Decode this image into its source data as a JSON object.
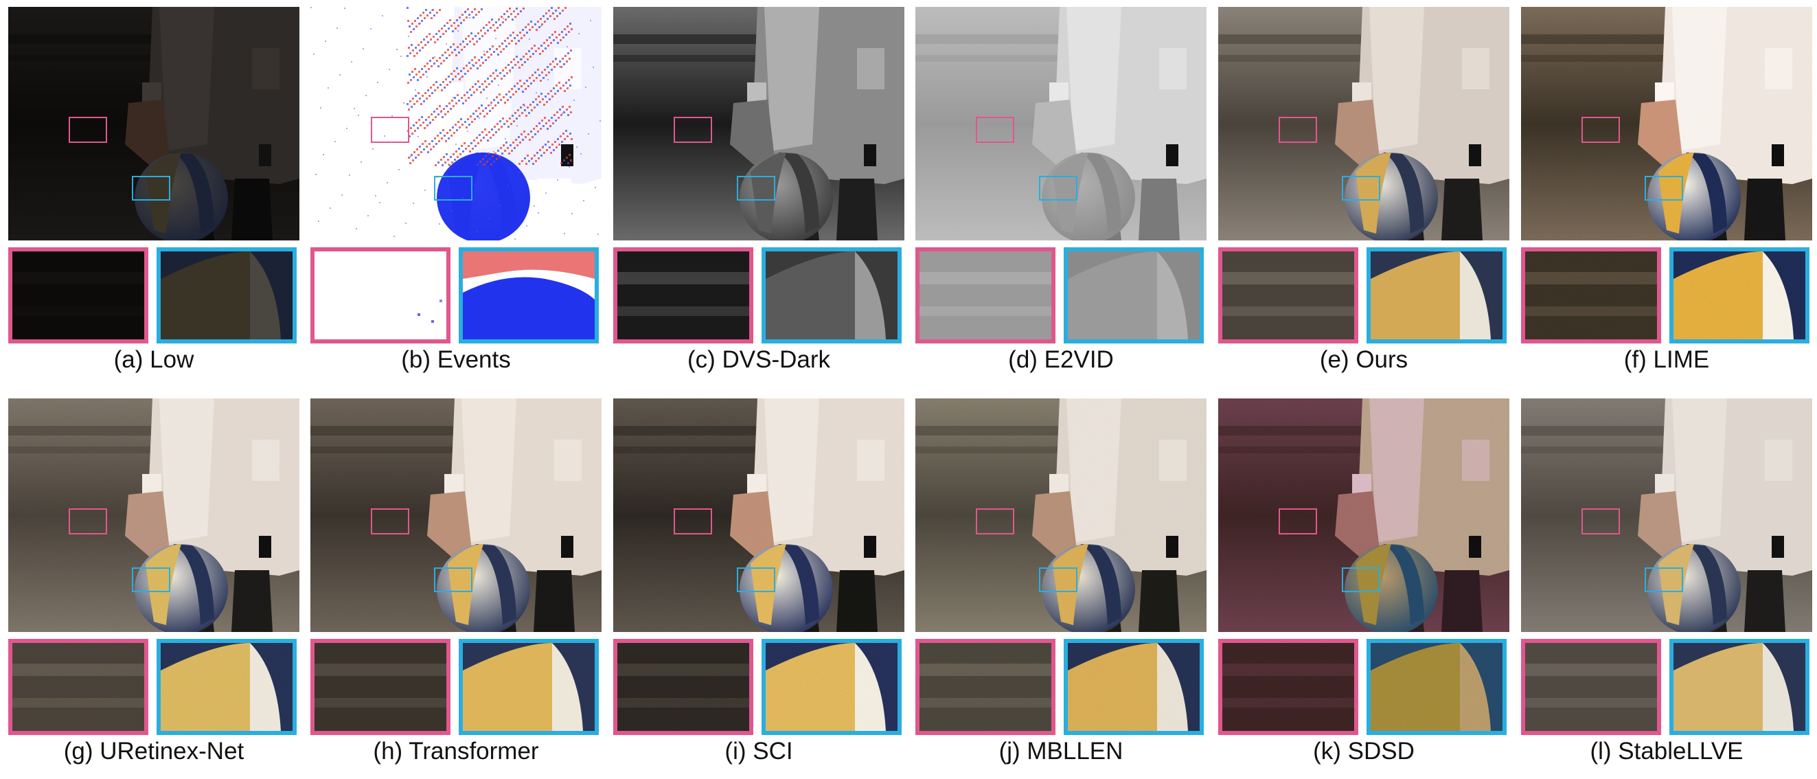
{
  "colors": {
    "pink": "#e0578e",
    "blue": "#29aee0"
  },
  "panels": [
    {
      "caption": "(a) Low",
      "variant": "low"
    },
    {
      "caption": "(b) Events",
      "variant": "events"
    },
    {
      "caption": "(c) DVS-Dark",
      "variant": "dvsdark"
    },
    {
      "caption": "(d) E2VID",
      "variant": "e2vid"
    },
    {
      "caption": "(e) Ours",
      "variant": "ours"
    },
    {
      "caption": "(f) LIME",
      "variant": "lime"
    },
    {
      "caption": "(g) URetinex-Net",
      "variant": "uretinex"
    },
    {
      "caption": "(h) Transformer",
      "variant": "transformer"
    },
    {
      "caption": "(i) SCI",
      "variant": "sci"
    },
    {
      "caption": "(j) MBLLEN",
      "variant": "mbllen"
    },
    {
      "caption": "(k) SDSD",
      "variant": "sdsd"
    },
    {
      "caption": "(l) StableLLVE",
      "variant": "stablellve"
    }
  ]
}
